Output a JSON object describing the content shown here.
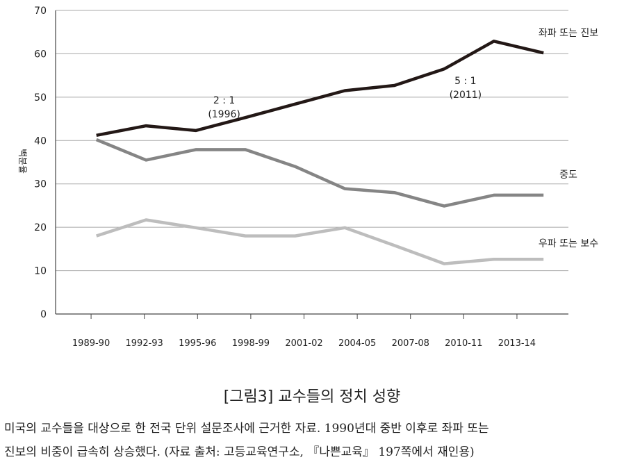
{
  "chart_data": {
    "type": "line",
    "title": "",
    "ylabel": "백분율",
    "xlabel": "",
    "ylim": [
      0,
      70
    ],
    "yticks": [
      0,
      10,
      20,
      30,
      40,
      50,
      60,
      70
    ],
    "categories": [
      "1989-90",
      "1992-93",
      "1995-96",
      "1998-99",
      "2001-02",
      "2004-05",
      "2007-08",
      "2010-11",
      "2013-14"
    ],
    "x": [
      1989.5,
      1992.5,
      1995.5,
      1998.5,
      2001.5,
      2004.5,
      2007.5,
      2010.5,
      2013.5
    ],
    "xlim": [
      1987.5,
      2016.4
    ],
    "series": [
      {
        "name": "좌파 또는 진보",
        "color": "#231816",
        "x": [
          1989.8,
          1992.6,
          1995.4,
          1998.2,
          2001.0,
          2003.8,
          2006.6,
          2009.4,
          2012.2,
          2015.0
        ],
        "values": [
          41.2,
          43.4,
          42.3,
          45.3,
          48.4,
          51.5,
          52.7,
          56.5,
          62.9,
          60.2
        ]
      },
      {
        "name": "중도",
        "color": "#858585",
        "x": [
          1989.8,
          1992.6,
          1995.4,
          1998.2,
          2001.0,
          2003.8,
          2006.6,
          2009.4,
          2012.2,
          2015.0
        ],
        "values": [
          40.2,
          35.5,
          37.9,
          37.9,
          34.0,
          28.9,
          28.0,
          24.9,
          27.4,
          27.4
        ]
      },
      {
        "name": "우파 또는 보수",
        "color": "#bdbdbd",
        "x": [
          1989.8,
          1992.6,
          1995.4,
          1998.2,
          2001.0,
          2003.8,
          2006.6,
          2009.4,
          2012.2,
          2015.0
        ],
        "values": [
          18.0,
          21.7,
          19.9,
          18.0,
          18.0,
          19.9,
          15.8,
          11.6,
          12.6,
          12.6
        ]
      }
    ],
    "annotations": [
      {
        "line1": "2 : 1",
        "line2": "(1996)",
        "x": 1997.0,
        "y": 48.5
      },
      {
        "line1": "5 : 1",
        "line2": "(2011)",
        "x": 2010.6,
        "y": 53.0
      }
    ]
  },
  "figure": {
    "title": "[그림3] 교수들의 정치 성향",
    "caption_line1": "미국의 교수들을 대상으로 한 전국 단위 설문조사에 근거한 자료. 1990년대 중반 이후로 좌파 또는",
    "caption_line2": "진보의 비중이 급속히 상승했다. (자료 출처: 고등교육연구소, 『나쁜교육』 197쪽에서 재인용)"
  }
}
